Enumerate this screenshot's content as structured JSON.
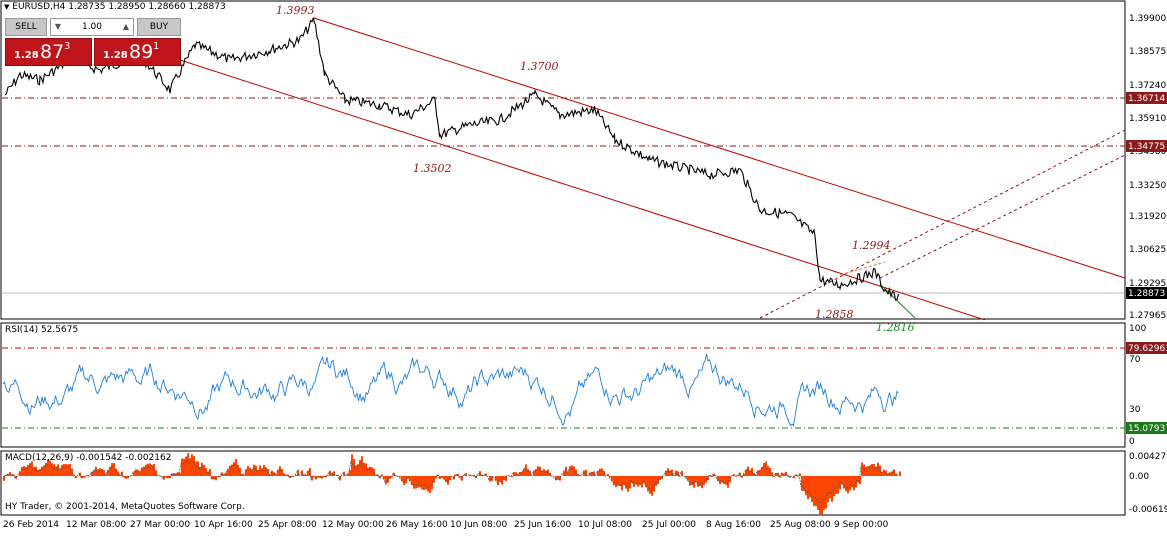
{
  "main": {
    "title": "EURUSD,H4  1.28735 1.28950 1.28660 1.28873",
    "price_axis": [
      "1.39900",
      "1.38575",
      "1.37240",
      "1.35910",
      "1.34580",
      "1.33250",
      "1.31920",
      "1.30625",
      "1.29295",
      "1.27965"
    ],
    "level_tags": [
      {
        "label": "1.36714",
        "color": "#8b1a1a"
      },
      {
        "label": "1.34775",
        "color": "#8b1a1a"
      },
      {
        "label": "1.28873",
        "color": "#000000"
      }
    ],
    "annotations": [
      {
        "text": "1.3993",
        "color": "#8b1a1a"
      },
      {
        "text": "1.3700",
        "color": "#8b1a1a"
      },
      {
        "text": "1.3502",
        "color": "#8b1a1a"
      },
      {
        "text": "1.2994",
        "color": "#8b1a1a"
      },
      {
        "text": "1.2858",
        "color": "#8b1a1a"
      },
      {
        "text": "1.2816",
        "color": "#1a8b1a"
      }
    ]
  },
  "trade_panel": {
    "sell_label": "SELL",
    "buy_label": "BUY",
    "lot": "1.00",
    "sell_small": "1.28",
    "sell_big": "87",
    "sell_sup": "3",
    "buy_small": "1.28",
    "buy_big": "89",
    "buy_sup": "1",
    "up_arrow": "▲",
    "down_arrow": "▼",
    "panel_color": "#c0141b"
  },
  "rsi": {
    "title": "RSI(14) 52.5675",
    "axis": [
      "100",
      "70",
      "30",
      "0"
    ],
    "level_tags": [
      {
        "label": "79.62963",
        "color": "#8b1a1a"
      },
      {
        "label": "15.07937",
        "color": "#1a7a1a"
      }
    ],
    "line_color": "#1e7fd6"
  },
  "macd": {
    "title": "MACD(12,26,9) -0.001542 -0.002162",
    "axis": [
      "0.004279",
      "0.00",
      "-0.006195"
    ],
    "hist_color": "#ff4500"
  },
  "copyright": "HY Trader, © 2001-2014, MetaQuotes Software Corp.",
  "time_axis": [
    "26 Feb 2014",
    "12 Mar 08:00",
    "27 Mar 00:00",
    "10 Apr 16:00",
    "25 Apr 08:00",
    "12 May 00:00",
    "26 May 16:00",
    "10 Jun 08:00",
    "25 Jun 16:00",
    "10 Jul 08:00",
    "25 Jul 00:00",
    "8 Aug 16:00",
    "25 Aug 08:00",
    "9 Sep 00:00"
  ],
  "dropdown_glyph": "▼"
}
